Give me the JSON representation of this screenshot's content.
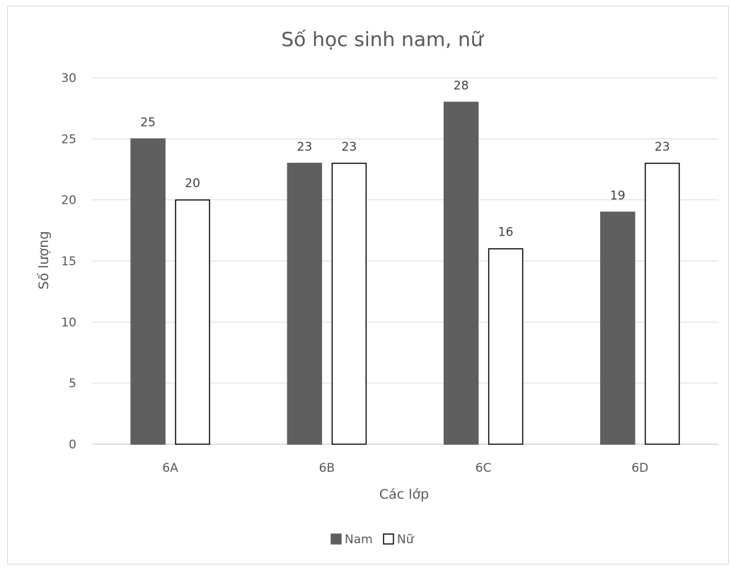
{
  "chart_data": {
    "type": "bar",
    "title": "Số học sinh nam, nữ",
    "xlabel": "Các lớp",
    "ylabel": "Số  lượng",
    "categories": [
      "6A",
      "6B",
      "6C",
      "6D"
    ],
    "ylim": [
      0,
      30
    ],
    "yticks": [
      0,
      5,
      10,
      15,
      20,
      25,
      30
    ],
    "grid": true,
    "legend_position": "bottom",
    "series": [
      {
        "name": "Nam",
        "values": [
          25,
          23,
          28,
          19
        ],
        "color": "#5f5f5f",
        "stroke": "#5f5f5f"
      },
      {
        "name": "Nữ",
        "values": [
          20,
          23,
          16,
          23
        ],
        "color": "#ffffff",
        "stroke": "#000000"
      }
    ]
  }
}
